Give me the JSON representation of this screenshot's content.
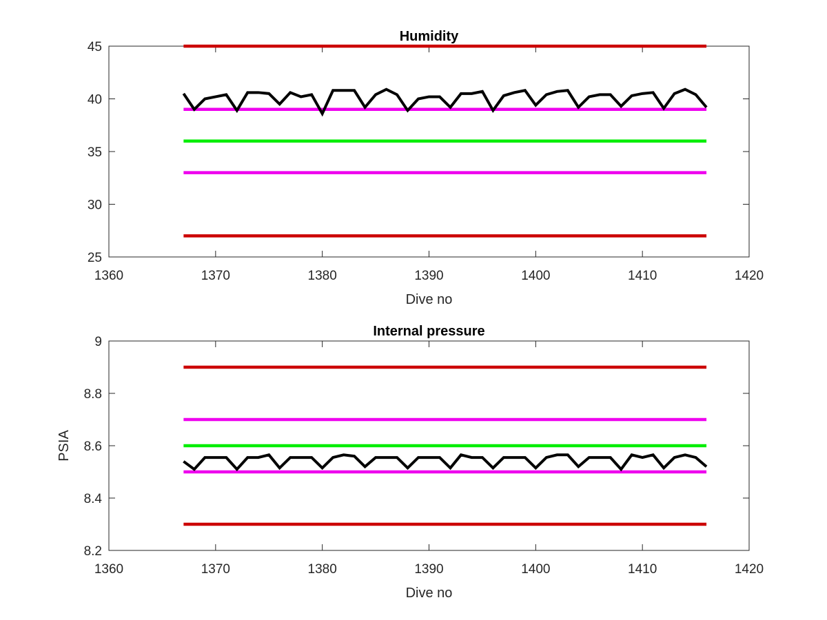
{
  "chart_data": [
    {
      "type": "line",
      "title": "Humidity",
      "xlabel": "Dive no",
      "ylabel": "",
      "xlim": [
        1360,
        1420
      ],
      "ylim": [
        25,
        45
      ],
      "xticks": [
        "1360",
        "1370",
        "1380",
        "1390",
        "1400",
        "1410",
        "1420"
      ],
      "yticks": [
        "25",
        "30",
        "35",
        "40",
        "45"
      ],
      "grid": false,
      "series": [
        {
          "color": "#000000",
          "x": [
            1367,
            1368,
            1369,
            1370,
            1371,
            1372,
            1373,
            1374,
            1375,
            1376,
            1377,
            1378,
            1379,
            1380,
            1381,
            1382,
            1383,
            1384,
            1385,
            1386,
            1387,
            1388,
            1389,
            1390,
            1391,
            1392,
            1393,
            1394,
            1395,
            1396,
            1397,
            1398,
            1399,
            1400,
            1401,
            1402,
            1403,
            1404,
            1405,
            1406,
            1407,
            1408,
            1409,
            1410,
            1411,
            1412,
            1413,
            1414,
            1415,
            1416
          ],
          "values": [
            40.5,
            39.0,
            40.0,
            40.2,
            40.4,
            38.9,
            40.6,
            40.6,
            40.5,
            39.5,
            40.6,
            40.2,
            40.4,
            38.6,
            40.8,
            40.8,
            40.8,
            39.2,
            40.4,
            40.9,
            40.4,
            38.9,
            40.0,
            40.2,
            40.2,
            39.2,
            40.5,
            40.5,
            40.7,
            38.9,
            40.3,
            40.6,
            40.8,
            39.4,
            40.4,
            40.7,
            40.8,
            39.2,
            40.2,
            40.4,
            40.4,
            39.3,
            40.3,
            40.5,
            40.6,
            39.1,
            40.5,
            40.9,
            40.4,
            39.2
          ]
        },
        {
          "color": "#cc0000",
          "x": [
            1367,
            1416
          ],
          "values": [
            45,
            45
          ]
        },
        {
          "color": "#ee00ee",
          "x": [
            1367,
            1416
          ],
          "values": [
            39,
            39
          ]
        },
        {
          "color": "#00ee00",
          "x": [
            1367,
            1416
          ],
          "values": [
            36,
            36
          ]
        },
        {
          "color": "#ee00ee",
          "x": [
            1367,
            1416
          ],
          "values": [
            33,
            33
          ]
        },
        {
          "color": "#cc0000",
          "x": [
            1367,
            1416
          ],
          "values": [
            27,
            27
          ]
        }
      ]
    },
    {
      "type": "line",
      "title": "Internal pressure",
      "xlabel": "Dive no",
      "ylabel": "PSIA",
      "xlim": [
        1360,
        1420
      ],
      "ylim": [
        8.2,
        9.0
      ],
      "xticks": [
        "1360",
        "1370",
        "1380",
        "1390",
        "1400",
        "1410",
        "1420"
      ],
      "yticks": [
        "8.2",
        "8.4",
        "8.6",
        "8.8",
        "9"
      ],
      "grid": false,
      "series": [
        {
          "color": "#000000",
          "x": [
            1367,
            1368,
            1369,
            1370,
            1371,
            1372,
            1373,
            1374,
            1375,
            1376,
            1377,
            1378,
            1379,
            1380,
            1381,
            1382,
            1383,
            1384,
            1385,
            1386,
            1387,
            1388,
            1389,
            1390,
            1391,
            1392,
            1393,
            1394,
            1395,
            1396,
            1397,
            1398,
            1399,
            1400,
            1401,
            1402,
            1403,
            1404,
            1405,
            1406,
            1407,
            1408,
            1409,
            1410,
            1411,
            1412,
            1413,
            1414,
            1415,
            1416
          ],
          "values": [
            8.54,
            8.51,
            8.555,
            8.555,
            8.555,
            8.51,
            8.555,
            8.555,
            8.565,
            8.515,
            8.555,
            8.555,
            8.555,
            8.515,
            8.555,
            8.565,
            8.56,
            8.52,
            8.555,
            8.555,
            8.555,
            8.515,
            8.555,
            8.555,
            8.555,
            8.515,
            8.565,
            8.555,
            8.555,
            8.515,
            8.555,
            8.555,
            8.555,
            8.515,
            8.555,
            8.565,
            8.565,
            8.52,
            8.555,
            8.555,
            8.555,
            8.51,
            8.565,
            8.555,
            8.565,
            8.515,
            8.555,
            8.565,
            8.555,
            8.52
          ]
        },
        {
          "color": "#cc0000",
          "x": [
            1367,
            1416
          ],
          "values": [
            8.9,
            8.9
          ]
        },
        {
          "color": "#ee00ee",
          "x": [
            1367,
            1416
          ],
          "values": [
            8.7,
            8.7
          ]
        },
        {
          "color": "#00ee00",
          "x": [
            1367,
            1416
          ],
          "values": [
            8.6,
            8.6
          ]
        },
        {
          "color": "#ee00ee",
          "x": [
            1367,
            1416
          ],
          "values": [
            8.5,
            8.5
          ]
        },
        {
          "color": "#cc0000",
          "x": [
            1367,
            1416
          ],
          "values": [
            8.3,
            8.3
          ]
        }
      ]
    }
  ]
}
